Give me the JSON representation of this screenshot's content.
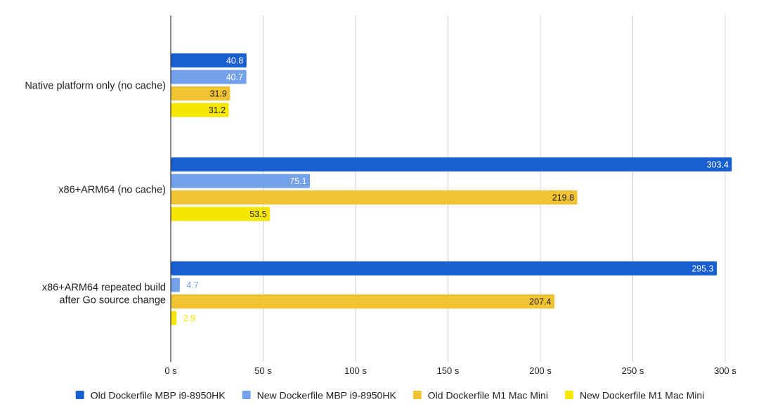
{
  "chart_data": {
    "type": "bar",
    "orientation": "horizontal",
    "title": "",
    "xlabel": "",
    "ylabel": "",
    "unit_suffix": " s",
    "xlim": [
      0,
      300
    ],
    "x_ticks": [
      0,
      50,
      100,
      150,
      200,
      250,
      300
    ],
    "x_tick_labels": [
      "0 s",
      "50 s",
      "100 s",
      "150 s",
      "200 s",
      "250 s",
      "300 s"
    ],
    "grid": true,
    "legend_position": "bottom",
    "categories": [
      [
        "Native platform only (no cache)"
      ],
      [
        "x86+ARM64 (no cache)"
      ],
      [
        "x86+ARM64 repeated build",
        "after Go source change"
      ]
    ],
    "series": [
      {
        "name": "Old Dockerfile MBP i9-8950HK",
        "color": "#1a5fd1",
        "values": [
          40.8,
          303.4,
          295.3
        ],
        "value_labels": [
          "40.8",
          "303.4",
          "295.3"
        ]
      },
      {
        "name": "New Dockerfile MBP i9-8950HK",
        "color": "#73a1ea",
        "values": [
          40.7,
          75.1,
          4.7
        ],
        "value_labels": [
          "40.7",
          "75.1",
          "4.7"
        ]
      },
      {
        "name": "Old Dockerfile M1 Mac Mini",
        "color": "#f1c232",
        "values": [
          31.9,
          219.8,
          207.4
        ],
        "value_labels": [
          "31.9",
          "219.8",
          "207.4"
        ]
      },
      {
        "name": "New Dockerfile M1 Mac Mini",
        "color": "#f7e600",
        "values": [
          31.2,
          53.5,
          2.9
        ],
        "value_labels": [
          "31.2",
          "53.5",
          "2.9"
        ]
      }
    ]
  }
}
